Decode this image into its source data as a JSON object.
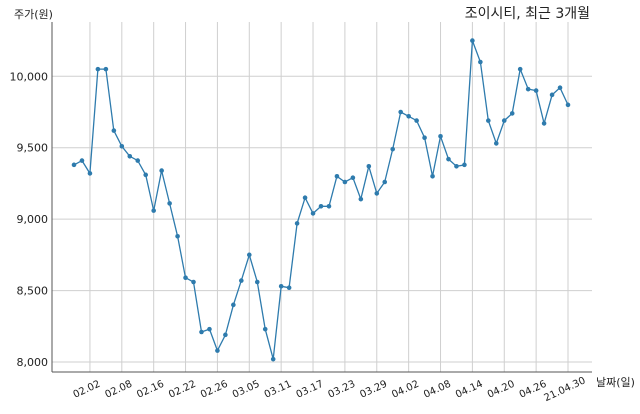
{
  "chart_data": {
    "type": "line",
    "title": "조이시티, 최근 3개월",
    "ylabel": "주가(원)",
    "xlabel": "날짜(일)",
    "ylim": [
      7930,
      10380
    ],
    "yticks": [
      8000,
      8500,
      9000,
      9500,
      10000
    ],
    "ytick_labels": [
      "8,000",
      "8,500",
      "9,000",
      "9,500",
      "10,000"
    ],
    "grid": true,
    "color": "#2e7bad",
    "x_tick_labels": [
      "02.02",
      "02.08",
      "02.16",
      "02.22",
      "02.26",
      "03.05",
      "03.11",
      "03.17",
      "03.23",
      "03.29",
      "04.02",
      "04.08",
      "04.14",
      "04.20",
      "04.26",
      "21.04.30"
    ],
    "x_tick_indices": [
      2,
      6,
      10,
      14,
      18,
      22,
      26,
      30,
      34,
      38,
      42,
      46,
      50,
      54,
      58,
      62
    ],
    "series": [
      {
        "values": [
          9380,
          9410,
          9320,
          10050,
          10050,
          9620,
          9510,
          9440,
          9410,
          9310,
          9060,
          9340,
          9110,
          8880,
          8590,
          8560,
          8210,
          8230,
          8080,
          8190,
          8400,
          8570,
          8750,
          8560,
          8230,
          8020,
          8530,
          8520,
          8970,
          9150,
          9040,
          9090,
          9090,
          9300,
          9260,
          9290,
          9140,
          9370,
          9180,
          9260,
          9490,
          9750,
          9720,
          9690,
          9570,
          9300,
          9580,
          9420,
          9370,
          9380,
          10250,
          10100,
          9690,
          9530,
          9690,
          9740,
          10050,
          9910,
          9900,
          9670,
          9870,
          9920,
          9800
        ]
      }
    ]
  }
}
